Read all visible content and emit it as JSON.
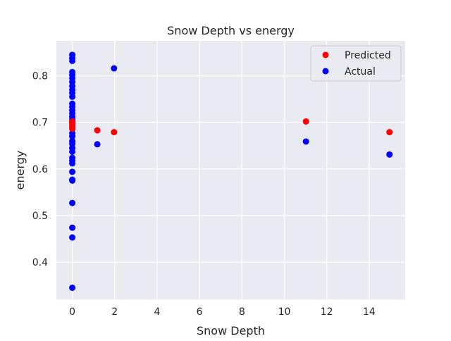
{
  "chart_data": {
    "type": "scatter",
    "title": "Snow Depth vs energy",
    "xlabel": "Snow Depth",
    "ylabel": "energy",
    "xlim": [
      -0.75,
      15.7
    ],
    "ylim": [
      0.32,
      0.875
    ],
    "xticks": [
      0,
      2,
      4,
      6,
      8,
      10,
      12,
      14
    ],
    "yticks": [
      0.4,
      0.5,
      0.6,
      0.7,
      0.8
    ],
    "xtick_labels": [
      "0",
      "2",
      "4",
      "6",
      "8",
      "10",
      "12",
      "14"
    ],
    "ytick_labels": [
      "0.4",
      "0.5",
      "0.6",
      "0.7",
      "0.8"
    ],
    "grid": true,
    "legend_position": "top-right",
    "series": [
      {
        "name": "Predicted",
        "color": "#ff0000",
        "points": [
          {
            "x": 0,
            "y": 0.686
          },
          {
            "x": 0,
            "y": 0.69
          },
          {
            "x": 0,
            "y": 0.694
          },
          {
            "x": 0,
            "y": 0.698
          },
          {
            "x": 0,
            "y": 0.702
          },
          {
            "x": 1.18,
            "y": 0.683
          },
          {
            "x": 1.97,
            "y": 0.679
          },
          {
            "x": 11.02,
            "y": 0.702
          },
          {
            "x": 14.96,
            "y": 0.679
          }
        ]
      },
      {
        "name": "Actual",
        "color": "#0000ff",
        "points": [
          {
            "x": 0,
            "y": 0.845
          },
          {
            "x": 0,
            "y": 0.838
          },
          {
            "x": 0,
            "y": 0.832
          },
          {
            "x": 0,
            "y": 0.808
          },
          {
            "x": 0,
            "y": 0.802
          },
          {
            "x": 0,
            "y": 0.795
          },
          {
            "x": 0,
            "y": 0.787
          },
          {
            "x": 0,
            "y": 0.778
          },
          {
            "x": 0,
            "y": 0.77
          },
          {
            "x": 0,
            "y": 0.763
          },
          {
            "x": 0,
            "y": 0.755
          },
          {
            "x": 0,
            "y": 0.74
          },
          {
            "x": 0,
            "y": 0.733
          },
          {
            "x": 0,
            "y": 0.726
          },
          {
            "x": 0,
            "y": 0.719
          },
          {
            "x": 0,
            "y": 0.712
          },
          {
            "x": 0,
            "y": 0.706
          },
          {
            "x": 0,
            "y": 0.7
          },
          {
            "x": 0,
            "y": 0.677
          },
          {
            "x": 0,
            "y": 0.67
          },
          {
            "x": 0,
            "y": 0.66
          },
          {
            "x": 0,
            "y": 0.654
          },
          {
            "x": 0,
            "y": 0.645
          },
          {
            "x": 0,
            "y": 0.637
          },
          {
            "x": 0,
            "y": 0.624
          },
          {
            "x": 0,
            "y": 0.618
          },
          {
            "x": 0,
            "y": 0.612
          },
          {
            "x": 0,
            "y": 0.594
          },
          {
            "x": 0,
            "y": 0.577
          },
          {
            "x": 0,
            "y": 0.575
          },
          {
            "x": 0,
            "y": 0.527
          },
          {
            "x": 0,
            "y": 0.474
          },
          {
            "x": 0,
            "y": 0.453
          },
          {
            "x": 0,
            "y": 0.345
          },
          {
            "x": 1.18,
            "y": 0.653
          },
          {
            "x": 1.97,
            "y": 0.816
          },
          {
            "x": 11.02,
            "y": 0.659
          },
          {
            "x": 14.96,
            "y": 0.631
          }
        ]
      }
    ]
  }
}
